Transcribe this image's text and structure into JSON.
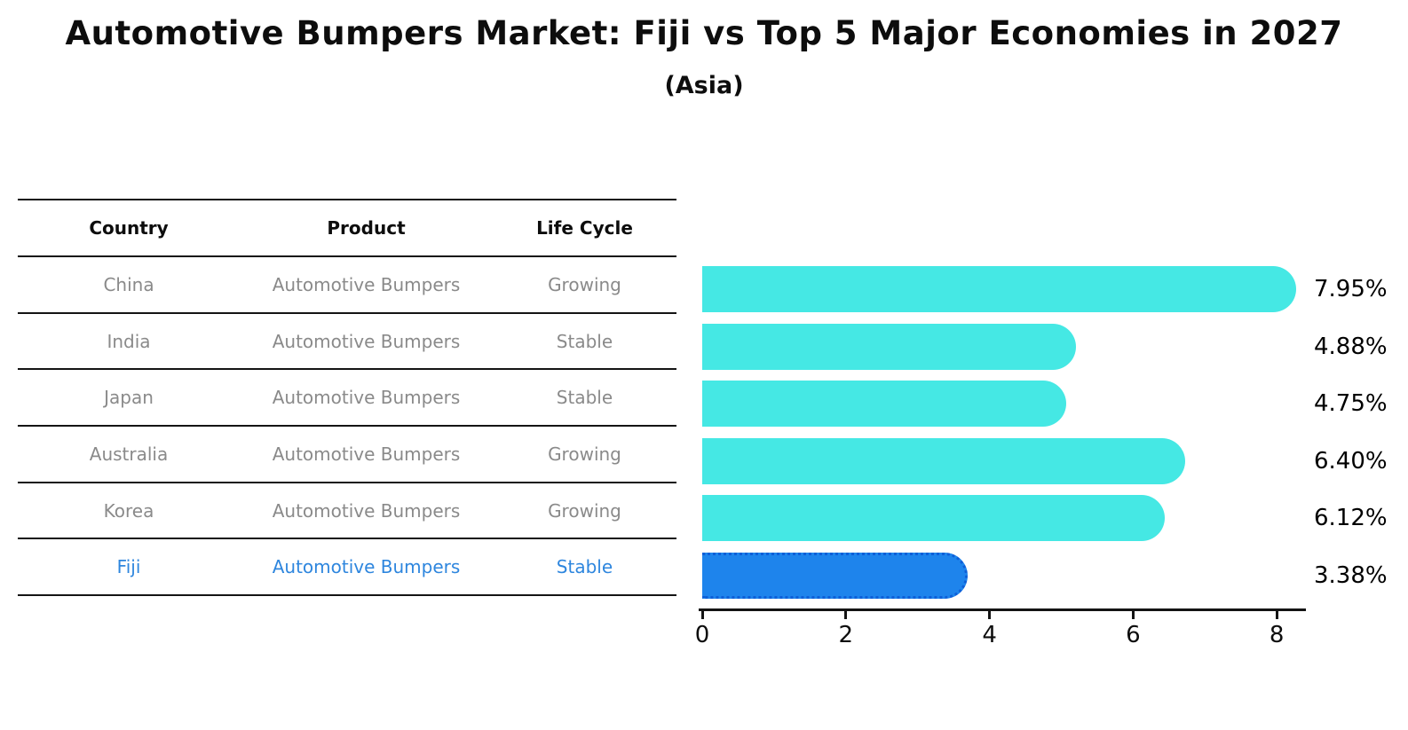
{
  "header": {
    "title": "Automotive Bumpers Market: Fiji vs Top 5 Major Economies in 2027",
    "subtitle": "(Asia)"
  },
  "table": {
    "headers": {
      "country": "Country",
      "product": "Product",
      "life_cycle": "Life Cycle"
    },
    "rows": [
      {
        "country": "China",
        "product": "Automotive Bumpers",
        "life_cycle": "Growing",
        "highlighted": false
      },
      {
        "country": "India",
        "product": "Automotive Bumpers",
        "life_cycle": "Stable",
        "highlighted": false
      },
      {
        "country": "Japan",
        "product": "Automotive Bumpers",
        "life_cycle": "Stable",
        "highlighted": false
      },
      {
        "country": "Australia",
        "product": "Automotive Bumpers",
        "life_cycle": "Growing",
        "highlighted": false
      },
      {
        "country": "Korea",
        "product": "Automotive Bumpers",
        "life_cycle": "Growing",
        "highlighted": false
      },
      {
        "country": "Fiji",
        "product": "Automotive Bumpers",
        "life_cycle": "Stable",
        "highlighted": true
      }
    ]
  },
  "chart_data": {
    "type": "bar",
    "orientation": "horizontal",
    "title": "Automotive Bumpers Market: Fiji vs Top 5 Major Economies in 2027",
    "subtitle": "(Asia)",
    "categories": [
      "China",
      "India",
      "Japan",
      "Australia",
      "Korea",
      "Fiji"
    ],
    "values": [
      7.95,
      4.88,
      4.75,
      6.4,
      6.12,
      3.38
    ],
    "value_labels": [
      "7.95%",
      "4.88%",
      "4.75%",
      "6.40%",
      "6.12%",
      "3.38%"
    ],
    "unit": "%",
    "x_ticks": [
      "0",
      "2",
      "4",
      "6",
      "8"
    ],
    "x_tick_values": [
      0,
      2,
      4,
      6,
      8
    ],
    "xlim": [
      0,
      8.4
    ],
    "grid": false,
    "legend": null,
    "highlight_index": 5
  },
  "colors": {
    "background": "#ffffff",
    "bar_color": "#45E8E4",
    "highlight_bar_color": "#1E84EC",
    "highlight_border_color": "#0E5FD8",
    "highlight_text_color": "#2E86DE",
    "table_text_color": "#8a8a8a",
    "axis_color": "#141414",
    "value_label_color": "#000000"
  }
}
